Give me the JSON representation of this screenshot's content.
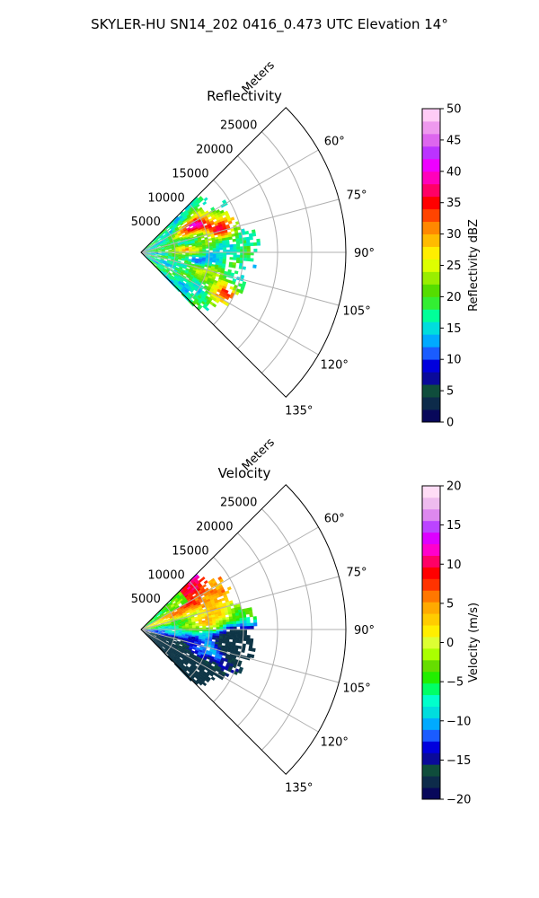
{
  "figure": {
    "suptitle": "SKYLER-HU  SN14_202  0416_0.473 UTC Elevation 14°"
  },
  "chart_data": [
    {
      "type": "heatmap",
      "title": "Reflectivity",
      "r_axis_label": "Meters",
      "r_ticks": [
        5000,
        10000,
        15000,
        20000,
        25000
      ],
      "r_tick_labels": [
        "5000",
        "10000",
        "15000",
        "20000",
        "25000"
      ],
      "rlim": [
        0,
        30000
      ],
      "theta_range_deg": [
        45,
        135
      ],
      "theta_ticks_deg": [
        60,
        75,
        90,
        105,
        120,
        135
      ],
      "theta_tick_labels": [
        "60°",
        "75°",
        "90°",
        "105°",
        "120°",
        "135°"
      ],
      "grid": true,
      "colorbar": {
        "label": "Reflectivity dBZ",
        "range": [
          0,
          50
        ],
        "ticks": [
          0,
          5,
          10,
          15,
          20,
          25,
          30,
          35,
          40,
          45,
          50
        ],
        "tick_labels": [
          "0",
          "5",
          "10",
          "15",
          "20",
          "25",
          "30",
          "35",
          "40",
          "45",
          "50"
        ],
        "colors": [
          "#08085a",
          "#0d2b4a",
          "#0f4d3c",
          "#0a0a9a",
          "#0000dd",
          "#1a5cff",
          "#00aaff",
          "#00dddd",
          "#00ff99",
          "#33ee33",
          "#55dd00",
          "#99ee00",
          "#ddff00",
          "#ffee00",
          "#ffbb00",
          "#ff8800",
          "#ff4400",
          "#ff0000",
          "#ff0066",
          "#ff00bb",
          "#ee00ff",
          "#bb33ff",
          "#dd66ee",
          "#ee99ee",
          "#ffccf6"
        ]
      }
    },
    {
      "type": "heatmap",
      "title": "Velocity",
      "r_axis_label": "Meters",
      "r_ticks": [
        5000,
        10000,
        15000,
        20000,
        25000
      ],
      "r_tick_labels": [
        "5000",
        "10000",
        "15000",
        "20000",
        "25000"
      ],
      "rlim": [
        0,
        30000
      ],
      "theta_range_deg": [
        45,
        135
      ],
      "theta_ticks_deg": [
        60,
        75,
        90,
        105,
        120,
        135
      ],
      "theta_tick_labels": [
        "60°",
        "75°",
        "90°",
        "105°",
        "120°",
        "135°"
      ],
      "grid": true,
      "colorbar": {
        "label": "Velocity (m/s)",
        "range": [
          -20,
          20
        ],
        "ticks": [
          -20,
          -15,
          -10,
          -5,
          0,
          5,
          10,
          15,
          20
        ],
        "tick_labels": [
          "−20",
          "−15",
          "−10",
          "−5",
          "0",
          "5",
          "10",
          "15",
          "20"
        ],
        "colors": [
          "#08085a",
          "#0d2b4a",
          "#0f4d3c",
          "#0a0a9a",
          "#0000dd",
          "#1a5cff",
          "#00aaff",
          "#00dddd",
          "#00ffcc",
          "#00ff66",
          "#22ee00",
          "#66dd00",
          "#aaff00",
          "#ddff33",
          "#ffee00",
          "#ffcc00",
          "#ffaa00",
          "#ff7700",
          "#ff3300",
          "#ff0000",
          "#ff0066",
          "#ff00cc",
          "#dd00ff",
          "#bb44ff",
          "#dd88ee",
          "#eebbee",
          "#ffddf6"
        ]
      }
    }
  ]
}
